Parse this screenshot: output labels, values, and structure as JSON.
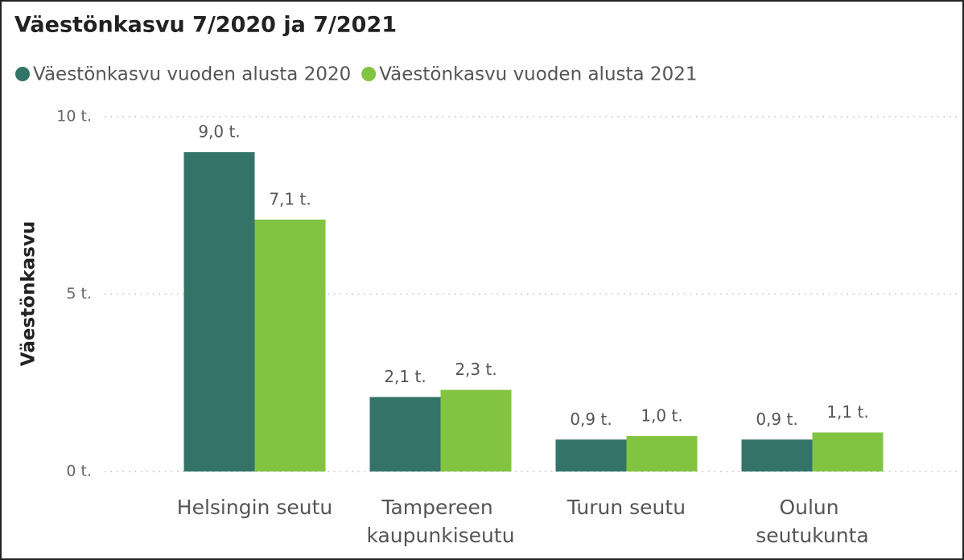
{
  "chart_data": {
    "type": "bar",
    "title": "Väestönkasvu 7/2020 ja 7/2021",
    "y_label": "Väestönkasvu",
    "categories": [
      "Helsingin seutu",
      "Tampereen kaupunkiseutu",
      "Turun seutu",
      "Oulun seutukunta"
    ],
    "series": [
      {
        "name": "Väestönkasvu vuoden alusta 2020",
        "color": "#347468",
        "values": [
          9.0,
          2.1,
          0.9,
          0.9
        ],
        "value_labels": [
          "9,0 t.",
          "2,1 t.",
          "0,9 t.",
          "0,9 t."
        ]
      },
      {
        "name": "Väestönkasvu vuoden alusta 2021",
        "color": "#82c341",
        "values": [
          7.1,
          2.3,
          1.0,
          1.1
        ],
        "value_labels": [
          "7,1 t.",
          "2,3 t.",
          "1,0 t.",
          "1,1 t."
        ]
      }
    ],
    "ylim": [
      0,
      10
    ],
    "yticks": [
      {
        "value": 0,
        "label": "0 t."
      },
      {
        "value": 5,
        "label": "5 t."
      },
      {
        "value": 10,
        "label": "10 t."
      }
    ],
    "grid": true
  }
}
